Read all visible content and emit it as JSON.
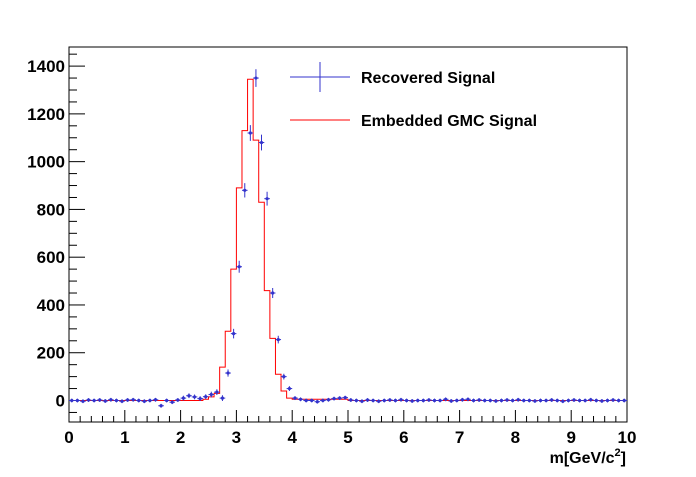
{
  "chart_data": {
    "type": "line",
    "title": "",
    "xlabel": "m[GeV/c",
    "xlabel_sup": "2",
    "xlabel_suffix": "]",
    "ylabel": "",
    "xlim": [
      0,
      10
    ],
    "ylim": [
      -90,
      1480
    ],
    "x_ticks": [
      0,
      1,
      2,
      3,
      4,
      5,
      6,
      7,
      8,
      9,
      10
    ],
    "y_ticks": [
      0,
      200,
      400,
      600,
      800,
      1000,
      1200,
      1400
    ],
    "grid": false,
    "legend_position": "top-right",
    "bin_width": 0.1,
    "series": [
      {
        "name": "Recovered Signal",
        "style": "points-with-error-bars",
        "color": "#3333cc",
        "x": [
          0.05,
          0.15,
          0.25,
          0.35,
          0.45,
          0.55,
          0.65,
          0.75,
          0.85,
          0.95,
          1.05,
          1.15,
          1.25,
          1.35,
          1.45,
          1.55,
          1.65,
          1.75,
          1.85,
          1.95,
          2.05,
          2.15,
          2.25,
          2.35,
          2.45,
          2.55,
          2.65,
          2.75,
          2.85,
          2.95,
          3.05,
          3.15,
          3.25,
          3.35,
          3.45,
          3.55,
          3.65,
          3.75,
          3.85,
          3.95,
          4.05,
          4.15,
          4.25,
          4.35,
          4.45,
          4.55,
          4.65,
          4.75,
          4.85,
          4.95,
          5.05,
          5.15,
          5.25,
          5.35,
          5.45,
          5.55,
          5.65,
          5.75,
          5.85,
          5.95,
          6.05,
          6.15,
          6.25,
          6.35,
          6.45,
          6.55,
          6.65,
          6.75,
          6.85,
          6.95,
          7.05,
          7.15,
          7.25,
          7.35,
          7.45,
          7.55,
          7.65,
          7.75,
          7.85,
          7.95,
          8.05,
          8.15,
          8.25,
          8.35,
          8.45,
          8.55,
          8.65,
          8.75,
          8.85,
          8.95,
          9.05,
          9.15,
          9.25,
          9.35,
          9.45,
          9.55,
          9.65,
          9.75,
          9.85,
          9.95
        ],
        "y": [
          0,
          0,
          -3,
          2,
          0,
          2,
          -2,
          3,
          0,
          -3,
          2,
          3,
          0,
          -3,
          0,
          3,
          -22,
          0,
          -7,
          2,
          10,
          20,
          15,
          8,
          16,
          25,
          35,
          10,
          115,
          280,
          560,
          880,
          1120,
          1350,
          1080,
          845,
          450,
          255,
          100,
          50,
          10,
          5,
          0,
          0,
          -5,
          0,
          3,
          8,
          10,
          12,
          2,
          0,
          -3,
          2,
          0,
          -3,
          0,
          2,
          0,
          3,
          0,
          -2,
          0,
          0,
          2,
          0,
          0,
          5,
          -2,
          0,
          3,
          5,
          0,
          2,
          0,
          0,
          -2,
          0,
          2,
          0,
          3,
          0,
          0,
          -2,
          0,
          0,
          2,
          0,
          -3,
          0,
          2,
          0,
          0,
          3,
          0,
          -2,
          0,
          2,
          0,
          0
        ],
        "yerr": [
          8,
          8,
          8,
          8,
          8,
          8,
          8,
          8,
          8,
          8,
          8,
          8,
          8,
          8,
          8,
          8,
          8,
          8,
          8,
          8,
          10,
          10,
          10,
          10,
          10,
          12,
          12,
          12,
          15,
          20,
          25,
          30,
          33,
          37,
          33,
          29,
          21,
          16,
          12,
          10,
          8,
          8,
          8,
          8,
          8,
          8,
          8,
          8,
          8,
          8,
          8,
          8,
          8,
          8,
          8,
          8,
          8,
          8,
          8,
          8,
          8,
          8,
          8,
          8,
          8,
          8,
          8,
          8,
          8,
          8,
          8,
          8,
          8,
          8,
          8,
          8,
          8,
          8,
          8,
          8,
          8,
          8,
          8,
          8,
          8,
          8,
          8,
          8,
          8,
          8,
          8,
          8,
          8,
          8,
          8,
          8,
          8,
          8,
          8,
          8
        ]
      },
      {
        "name": "Embedded GMC Signal",
        "style": "step-histogram",
        "color": "#ff0000",
        "x": [
          0.05,
          0.15,
          0.25,
          0.35,
          0.45,
          0.55,
          0.65,
          0.75,
          0.85,
          0.95,
          1.05,
          1.15,
          1.25,
          1.35,
          1.45,
          1.55,
          1.65,
          1.75,
          1.85,
          1.95,
          2.05,
          2.15,
          2.25,
          2.35,
          2.45,
          2.55,
          2.65,
          2.75,
          2.85,
          2.95,
          3.05,
          3.15,
          3.25,
          3.35,
          3.45,
          3.55,
          3.65,
          3.75,
          3.85,
          3.95,
          4.05,
          4.15,
          4.25,
          4.35,
          4.45,
          4.55,
          4.65,
          4.75,
          4.85,
          4.95,
          5.05,
          5.15,
          5.25,
          5.35,
          5.45,
          5.55,
          5.65,
          5.75,
          5.85,
          5.95,
          6.05,
          6.15,
          6.25,
          6.35,
          6.45,
          6.55,
          6.65,
          6.75,
          6.85,
          6.95,
          7.05,
          7.15,
          7.25,
          7.35,
          7.45,
          7.55,
          7.65,
          7.75,
          7.85,
          7.95,
          8.05,
          8.15,
          8.25,
          8.35,
          8.45,
          8.55,
          8.65,
          8.75,
          8.85,
          8.95,
          9.05,
          9.15,
          9.25,
          9.35,
          9.45,
          9.55,
          9.65,
          9.75,
          9.85,
          9.95
        ],
        "y": [
          0,
          0,
          0,
          0,
          0,
          0,
          0,
          0,
          0,
          0,
          0,
          0,
          0,
          0,
          0,
          0,
          0,
          0,
          0,
          0,
          0,
          0,
          0,
          0,
          5,
          15,
          30,
          140,
          290,
          550,
          890,
          1130,
          1345,
          1090,
          830,
          460,
          260,
          110,
          40,
          10,
          5,
          5,
          5,
          5,
          5,
          5,
          5,
          5,
          5,
          5,
          0,
          0,
          0,
          0,
          0,
          0,
          0,
          0,
          0,
          0,
          0,
          0,
          0,
          0,
          0,
          0,
          0,
          0,
          0,
          0,
          0,
          0,
          0,
          0,
          0,
          0,
          0,
          0,
          0,
          0,
          0,
          0,
          0,
          0,
          0,
          0,
          0,
          0,
          0,
          0,
          0,
          0,
          0,
          0,
          0,
          0,
          0,
          0,
          0,
          0
        ]
      }
    ]
  }
}
